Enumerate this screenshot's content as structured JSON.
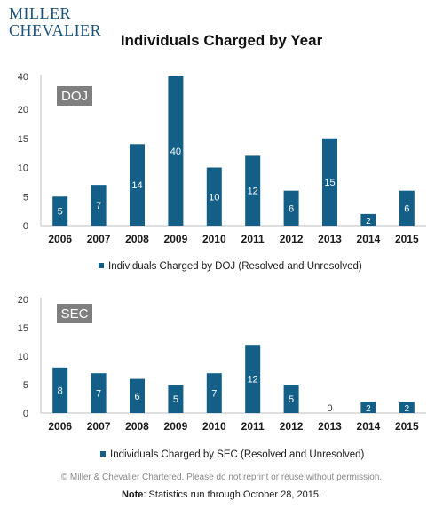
{
  "header": {
    "logo_line1": "MILLER",
    "logo_line2": "CHEVALIER",
    "title": "Individuals Charged by Year"
  },
  "colors": {
    "bar": "#135f88",
    "agency_box": "#7f7f7f",
    "axis": "#bfbfbf"
  },
  "chart_data": [
    {
      "type": "bar",
      "id": "doj",
      "agency_label": "DOJ",
      "categories": [
        "2006",
        "2007",
        "2008",
        "2009",
        "2010",
        "2011",
        "2012",
        "2013",
        "2014",
        "2015"
      ],
      "series": [
        {
          "name": "Individuals Charged by DOJ (Resolved and Unresolved)",
          "values": [
            5,
            7,
            14,
            40,
            10,
            12,
            6,
            15,
            2,
            6
          ]
        }
      ],
      "y_ticks": [
        "0",
        "5",
        "10",
        "15",
        "20",
        "40"
      ],
      "scale": "broken",
      "grid": false,
      "legend_position": "bottom"
    },
    {
      "type": "bar",
      "id": "sec",
      "agency_label": "SEC",
      "categories": [
        "2006",
        "2007",
        "2008",
        "2009",
        "2010",
        "2011",
        "2012",
        "2013",
        "2014",
        "2015"
      ],
      "series": [
        {
          "name": "Individuals Charged by SEC (Resolved and Unresolved)",
          "values": [
            8,
            7,
            6,
            5,
            7,
            12,
            5,
            0,
            2,
            2
          ]
        }
      ],
      "y_ticks": [
        "0",
        "5",
        "10",
        "15",
        "20"
      ],
      "ylim": [
        0,
        20
      ],
      "grid": false,
      "legend_position": "bottom"
    }
  ],
  "footer": {
    "copyright": "© Miller & Chevalier Chartered. Please do not reprint or reuse without permission.",
    "note_label": "Note",
    "note_text": ": Statistics run through October 28, 2015."
  }
}
